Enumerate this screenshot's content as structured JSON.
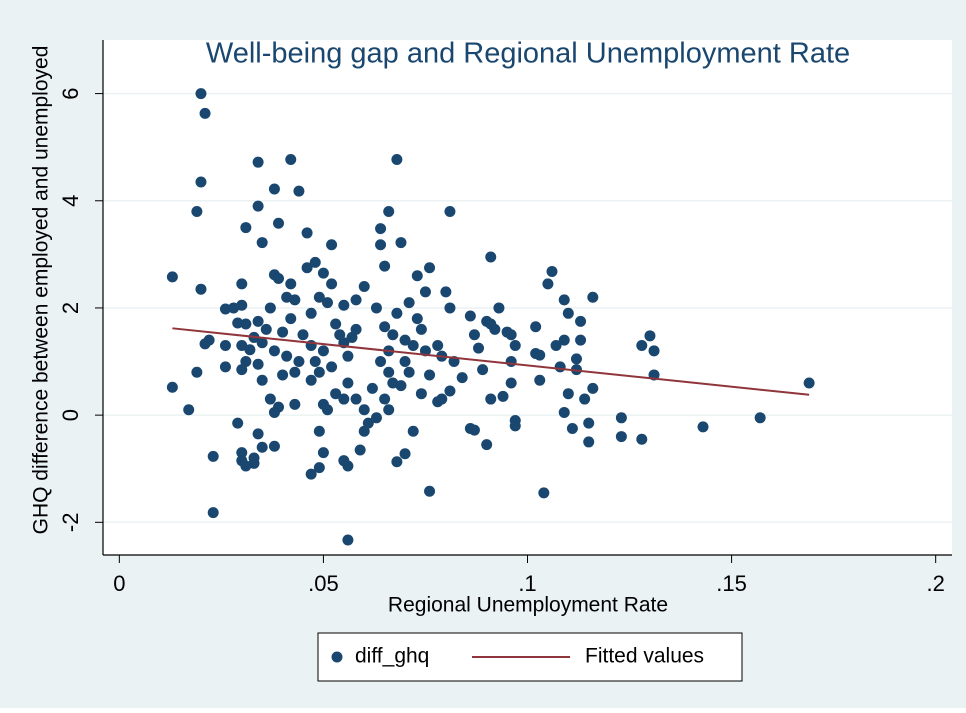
{
  "chart_data": {
    "type": "scatter",
    "title": "Well-being gap and Regional Unemployment Rate",
    "x_label": "Regional Unemployment Rate",
    "y_label": "GHQ difference between employed and unemployed",
    "xlim": [
      -0.004,
      0.204
    ],
    "ylim": [
      -2.61,
      7.0
    ],
    "xticks": [
      0,
      {
        "value": 0.05,
        "label": ".05"
      },
      {
        "value": 0.1,
        "label": ".1"
      },
      {
        "value": 0.15,
        "label": ".15"
      },
      {
        "value": 0.2,
        "label": ".2"
      }
    ],
    "yticks": [
      -2,
      0,
      2,
      4,
      6
    ],
    "grid": true,
    "legend": "bottom",
    "series": [
      {
        "name": "diff_ghq",
        "type": "scatter",
        "color": "#1a476f",
        "x": [
          0.02,
          0.021,
          0.02,
          0.019,
          0.013,
          0.02,
          0.022,
          0.021,
          0.019,
          0.013,
          0.017,
          0.023,
          0.023,
          0.034,
          0.042,
          0.038,
          0.044,
          0.034,
          0.031,
          0.039,
          0.035,
          0.046,
          0.038,
          0.039,
          0.042,
          0.03,
          0.041,
          0.043,
          0.037,
          0.028,
          0.026,
          0.03,
          0.034,
          0.031,
          0.029,
          0.036,
          0.04,
          0.033,
          0.035,
          0.03,
          0.026,
          0.032,
          0.038,
          0.041,
          0.031,
          0.034,
          0.03,
          0.026,
          0.035,
          0.04,
          0.037,
          0.039,
          0.038,
          0.043,
          0.029,
          0.03,
          0.03,
          0.031,
          0.033,
          0.033,
          0.034,
          0.035,
          0.038,
          0.043,
          0.044,
          0.045,
          0.042,
          0.048,
          0.05,
          0.046,
          0.052,
          0.051,
          0.049,
          0.047,
          0.053,
          0.052,
          0.058,
          0.06,
          0.055,
          0.047,
          0.05,
          0.048,
          0.049,
          0.047,
          0.052,
          0.054,
          0.055,
          0.056,
          0.057,
          0.058,
          0.053,
          0.055,
          0.056,
          0.051,
          0.05,
          0.049,
          0.05,
          0.049,
          0.047,
          0.055,
          0.056,
          0.056,
          0.059,
          0.06,
          0.061,
          0.062,
          0.06,
          0.058,
          0.064,
          0.064,
          0.065,
          0.066,
          0.068,
          0.069,
          0.063,
          0.065,
          0.067,
          0.07,
          0.068,
          0.066,
          0.064,
          0.066,
          0.067,
          0.069,
          0.07,
          0.072,
          0.073,
          0.071,
          0.073,
          0.075,
          0.076,
          0.074,
          0.075,
          0.076,
          0.074,
          0.071,
          0.072,
          0.07,
          0.068,
          0.065,
          0.063,
          0.066,
          0.076,
          0.078,
          0.079,
          0.081,
          0.08,
          0.081,
          0.082,
          0.081,
          0.079,
          0.078,
          0.084,
          0.086,
          0.087,
          0.088,
          0.086,
          0.087,
          0.089,
          0.09,
          0.091,
          0.091,
          0.093,
          0.092,
          0.09,
          0.091,
          0.094,
          0.095,
          0.096,
          0.097,
          0.096,
          0.096,
          0.097,
          0.097,
          0.102,
          0.102,
          0.103,
          0.103,
          0.104,
          0.105,
          0.106,
          0.107,
          0.108,
          0.109,
          0.109,
          0.11,
          0.11,
          0.109,
          0.111,
          0.112,
          0.112,
          0.113,
          0.113,
          0.114,
          0.115,
          0.115,
          0.116,
          0.116,
          0.123,
          0.123,
          0.128,
          0.128,
          0.13,
          0.131,
          0.131,
          0.143,
          0.157,
          0.169
        ],
        "values": [
          6.0,
          5.63,
          4.35,
          3.8,
          2.58,
          2.35,
          1.4,
          1.33,
          0.8,
          0.52,
          0.1,
          -0.77,
          -1.82,
          4.72,
          4.77,
          4.22,
          4.18,
          3.9,
          3.5,
          3.58,
          3.22,
          3.4,
          2.62,
          2.55,
          2.45,
          2.45,
          2.2,
          2.15,
          2.0,
          2.0,
          1.98,
          2.05,
          1.75,
          1.7,
          1.72,
          1.6,
          1.55,
          1.45,
          1.35,
          1.3,
          1.3,
          1.22,
          1.2,
          1.1,
          1.0,
          0.95,
          0.85,
          0.9,
          0.65,
          0.75,
          0.3,
          0.15,
          0.05,
          0.2,
          -0.15,
          -0.7,
          -0.85,
          -0.95,
          -0.9,
          -0.8,
          -0.35,
          -0.6,
          -0.58,
          0.8,
          1.0,
          1.5,
          1.8,
          2.85,
          2.65,
          2.75,
          2.45,
          2.1,
          2.2,
          1.9,
          1.7,
          3.18,
          2.15,
          2.4,
          2.05,
          1.3,
          1.2,
          1.0,
          0.8,
          0.65,
          0.9,
          1.5,
          1.35,
          1.1,
          1.45,
          1.6,
          0.4,
          0.3,
          0.6,
          0.1,
          0.2,
          -0.3,
          -0.7,
          -0.98,
          -1.1,
          -0.85,
          -0.95,
          -2.33,
          -0.65,
          -0.3,
          -0.15,
          0.5,
          0.1,
          0.3,
          3.48,
          3.18,
          2.78,
          3.8,
          4.77,
          3.22,
          2.0,
          1.65,
          1.5,
          1.4,
          1.9,
          1.2,
          1.0,
          0.8,
          0.6,
          0.55,
          1.0,
          1.3,
          1.8,
          2.1,
          2.6,
          2.3,
          2.75,
          1.6,
          1.2,
          0.75,
          0.4,
          0.8,
          -0.3,
          -0.72,
          -0.87,
          0.3,
          -0.05,
          0.1,
          -1.42,
          1.3,
          1.1,
          3.8,
          2.3,
          2.0,
          1.0,
          0.45,
          0.3,
          0.25,
          0.7,
          1.85,
          1.5,
          1.25,
          -0.25,
          -0.28,
          0.85,
          1.75,
          1.7,
          2.95,
          2.0,
          1.6,
          -0.55,
          0.3,
          0.35,
          1.55,
          1.5,
          1.3,
          1.0,
          0.6,
          -0.1,
          -0.2,
          1.65,
          1.15,
          1.12,
          0.65,
          -1.45,
          2.45,
          2.68,
          1.3,
          0.9,
          2.15,
          1.4,
          1.9,
          0.4,
          0.05,
          -0.25,
          0.85,
          1.05,
          1.4,
          1.75,
          0.3,
          -0.15,
          -0.5,
          0.5,
          2.2,
          -0.05,
          -0.4,
          1.3,
          -0.45,
          1.48,
          1.2,
          0.75,
          -0.22,
          -0.05,
          0.6
        ]
      },
      {
        "name": "Fitted values",
        "type": "line",
        "color": "#90353b",
        "x": [
          0.013,
          0.169
        ],
        "values": [
          1.62,
          0.38
        ]
      }
    ]
  }
}
